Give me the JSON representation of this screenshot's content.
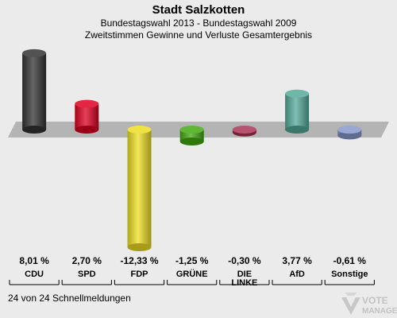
{
  "header": {
    "title": "Stadt Salzkotten",
    "subtitle1": "Bundestagswahl 2013 - Bundestagswahl 2009",
    "subtitle2": "Zweitstimmen Gewinne und Verluste Gesamtergebnis"
  },
  "chart_data": {
    "type": "bar",
    "categories": [
      "CDU",
      "SPD",
      "FDP",
      "GRÜNE",
      "DIE LINKE",
      "AfD",
      "Sonstige"
    ],
    "category_lines": [
      [
        "CDU"
      ],
      [
        "SPD"
      ],
      [
        "FDP"
      ],
      [
        "GRÜNE"
      ],
      [
        "DIE",
        "LINKE"
      ],
      [
        "AfD"
      ],
      [
        "Sonstige"
      ]
    ],
    "values": [
      8.01,
      2.7,
      -12.33,
      -1.25,
      -0.3,
      3.77,
      -0.61
    ],
    "value_labels": [
      "8,01 %",
      "2,70 %",
      "-12,33 %",
      "-1,25 %",
      "-0,30 %",
      "3,77 %",
      "-0,61 %"
    ],
    "colors": [
      "#333333",
      "#dd0022",
      "#eedd22",
      "#44aa11",
      "#aa3355",
      "#55aa99",
      "#8899cc"
    ]
  },
  "footer": {
    "status": "24 von 24 Schnellmeldungen"
  },
  "logo": {
    "line1": "VOTE",
    "line2": "MANAGER"
  }
}
